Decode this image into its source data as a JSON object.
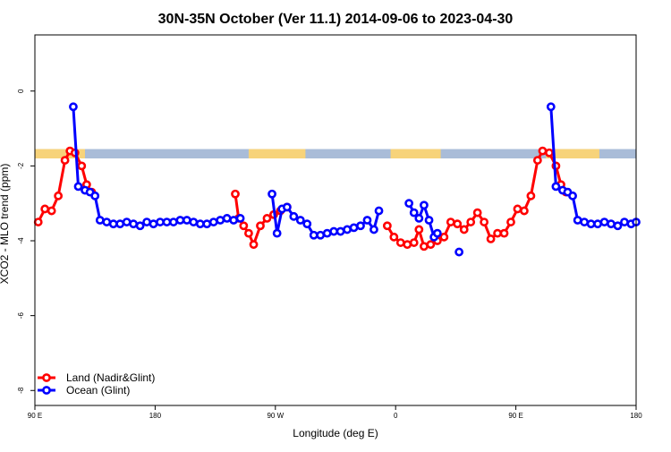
{
  "chart_data": {
    "type": "line",
    "title": "30N-35N October (Ver 11.1)   2014-09-06 to 2023-04-30",
    "xlabel": "Longitude (deg E)",
    "ylabel": "XCO2 - MLO trend (ppm)",
    "xlim": [
      -90,
      270
    ],
    "ylim": [
      -8.4,
      1.5
    ],
    "xticks": [
      {
        "value": -90,
        "label": "90 E"
      },
      {
        "value": -18,
        "label": "180"
      },
      {
        "value": 54,
        "label": "90 W"
      },
      {
        "value": 126,
        "label": "0"
      },
      {
        "value": 198,
        "label": "90 E"
      },
      {
        "value": 270,
        "label": "180"
      }
    ],
    "yticks": [
      {
        "value": 0,
        "label": "0"
      },
      {
        "value": -2,
        "label": "-2"
      },
      {
        "value": -4,
        "label": "-4"
      },
      {
        "value": -6,
        "label": "-6"
      },
      {
        "value": -8,
        "label": "-8"
      }
    ],
    "land_mask_band": {
      "y_range": [
        -1.8,
        -1.55
      ],
      "ocean_color": "#a9bcd8",
      "land_color": "#f7d37a",
      "land_intervals": [
        [
          -90,
          -60
        ],
        [
          38,
          72
        ],
        [
          123,
          153
        ],
        [
          216,
          248
        ]
      ]
    },
    "series": [
      {
        "name": "Land (Nadir&Glint)",
        "color": "#ff0000",
        "segments": [
          [
            [
              -88,
              -3.5
            ],
            [
              -84,
              -3.15
            ],
            [
              -80,
              -3.2
            ],
            [
              -76,
              -2.8
            ],
            [
              -72,
              -1.85
            ],
            [
              -69,
              -1.6
            ],
            [
              -66,
              -1.65
            ],
            [
              -62,
              -2.0
            ],
            [
              -59,
              -2.5
            ],
            [
              -56,
              -2.7
            ]
          ],
          [
            [
              30,
              -2.75
            ],
            [
              32,
              -3.4
            ],
            [
              35,
              -3.6
            ],
            [
              38,
              -3.8
            ],
            [
              41,
              -4.1
            ],
            [
              45,
              -3.6
            ],
            [
              49,
              -3.4
            ],
            [
              53,
              -3.3
            ],
            [
              57,
              -3.2
            ],
            [
              61,
              -3.1
            ]
          ],
          [
            [
              121,
              -3.6
            ],
            [
              125,
              -3.9
            ],
            [
              129,
              -4.05
            ],
            [
              133,
              -4.1
            ],
            [
              137,
              -4.05
            ],
            [
              140,
              -3.7
            ],
            [
              143,
              -4.15
            ],
            [
              147,
              -4.1
            ],
            [
              151,
              -4.0
            ],
            [
              155,
              -3.9
            ],
            [
              159,
              -3.5
            ],
            [
              163,
              -3.55
            ],
            [
              167,
              -3.7
            ],
            [
              171,
              -3.5
            ],
            [
              175,
              -3.25
            ],
            [
              179,
              -3.5
            ],
            [
              183,
              -3.95
            ],
            [
              187,
              -3.8
            ],
            [
              191,
              -3.8
            ],
            [
              195,
              -3.5
            ],
            [
              199,
              -3.15
            ],
            [
              203,
              -3.2
            ],
            [
              207,
              -2.8
            ],
            [
              211,
              -1.85
            ],
            [
              214,
              -1.6
            ],
            [
              218,
              -1.65
            ],
            [
              222,
              -2.0
            ],
            [
              225,
              -2.5
            ],
            [
              228,
              -2.7
            ]
          ]
        ]
      },
      {
        "name": "Ocean (Glint)",
        "color": "#0000ff",
        "segments": [
          [
            [
              -67,
              -0.42
            ],
            [
              -64,
              -2.55
            ],
            [
              -60,
              -2.65
            ],
            [
              -57,
              -2.7
            ],
            [
              -54,
              -2.8
            ],
            [
              -51,
              -3.45
            ],
            [
              -47,
              -3.5
            ],
            [
              -43,
              -3.55
            ],
            [
              -39,
              -3.55
            ],
            [
              -35,
              -3.5
            ],
            [
              -31,
              -3.55
            ],
            [
              -27,
              -3.6
            ],
            [
              -23,
              -3.5
            ],
            [
              -19,
              -3.55
            ],
            [
              -15,
              -3.5
            ],
            [
              -11,
              -3.5
            ],
            [
              -7,
              -3.5
            ],
            [
              -3,
              -3.45
            ],
            [
              1,
              -3.45
            ],
            [
              5,
              -3.5
            ],
            [
              9,
              -3.55
            ],
            [
              13,
              -3.55
            ],
            [
              17,
              -3.5
            ],
            [
              21,
              -3.45
            ],
            [
              25,
              -3.4
            ],
            [
              29,
              -3.45
            ],
            [
              33,
              -3.4
            ]
          ],
          [
            [
              52,
              -2.75
            ],
            [
              55,
              -3.8
            ],
            [
              58,
              -3.15
            ],
            [
              61,
              -3.1
            ],
            [
              65,
              -3.35
            ],
            [
              69,
              -3.45
            ],
            [
              73,
              -3.55
            ],
            [
              77,
              -3.85
            ],
            [
              81,
              -3.85
            ],
            [
              85,
              -3.8
            ],
            [
              89,
              -3.75
            ],
            [
              93,
              -3.75
            ],
            [
              97,
              -3.7
            ],
            [
              101,
              -3.65
            ],
            [
              105,
              -3.6
            ],
            [
              109,
              -3.45
            ],
            [
              113,
              -3.7
            ],
            [
              116,
              -3.2
            ]
          ],
          [
            [
              134,
              -3.0
            ],
            [
              137,
              -3.25
            ],
            [
              140,
              -3.4
            ],
            [
              143,
              -3.05
            ],
            [
              146,
              -3.45
            ],
            [
              149,
              -3.9
            ],
            [
              151,
              -3.8
            ]
          ],
          [
            [
              164,
              -4.3
            ]
          ],
          [
            [
              219,
              -0.42
            ],
            [
              222,
              -2.55
            ],
            [
              226,
              -2.65
            ],
            [
              229,
              -2.7
            ],
            [
              232,
              -2.8
            ],
            [
              235,
              -3.45
            ],
            [
              239,
              -3.5
            ],
            [
              243,
              -3.55
            ],
            [
              247,
              -3.55
            ],
            [
              251,
              -3.5
            ],
            [
              255,
              -3.55
            ],
            [
              259,
              -3.6
            ],
            [
              263,
              -3.5
            ],
            [
              267,
              -3.55
            ],
            [
              270,
              -3.5
            ]
          ]
        ]
      }
    ]
  }
}
